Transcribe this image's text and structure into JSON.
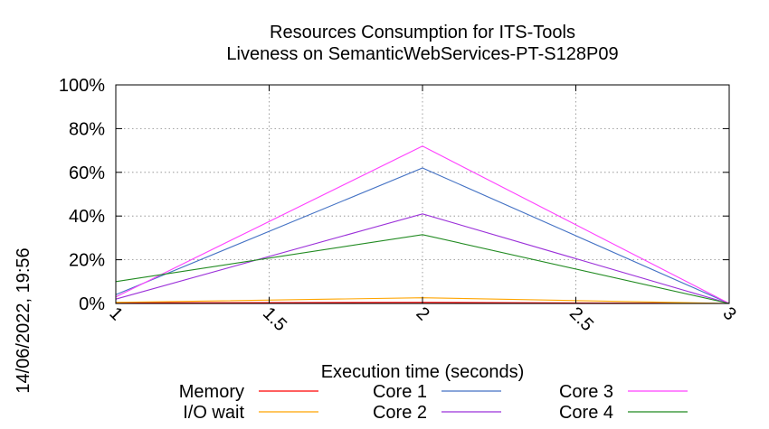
{
  "chart_data": {
    "type": "line",
    "title": [
      "Resources Consumption for ITS-Tools",
      "Liveness on SemanticWebServices-PT-S128P09"
    ],
    "xlabel": "Execution time (seconds)",
    "ylabel": "",
    "side_label": "14/06/2022, 19:56",
    "xlim": [
      1,
      3
    ],
    "ylim": [
      0,
      100
    ],
    "x_ticks": [
      1,
      1.5,
      2,
      2.5,
      3
    ],
    "x_tick_labels": [
      "1",
      "1.5",
      "2",
      "2.5",
      "3"
    ],
    "y_ticks": [
      0,
      20,
      40,
      60,
      80,
      100
    ],
    "y_tick_labels": [
      "0%",
      "20%",
      "40%",
      "60%",
      "80%",
      "100%"
    ],
    "grid": true,
    "legend_position": "bottom",
    "x": [
      1,
      2,
      3
    ],
    "series": [
      {
        "name": "Memory",
        "color": "#ff0000",
        "values": [
          0.3,
          0.5,
          0
        ]
      },
      {
        "name": "I/O wait",
        "color": "#ffa500",
        "values": [
          0.5,
          2.6,
          0
        ]
      },
      {
        "name": "Core 1",
        "color": "#4472c4",
        "values": [
          4,
          62,
          0
        ]
      },
      {
        "name": "Core 2",
        "color": "#9b30d9",
        "values": [
          2,
          41,
          0
        ]
      },
      {
        "name": "Core 3",
        "color": "#ff40ff",
        "values": [
          3,
          72,
          0
        ]
      },
      {
        "name": "Core 4",
        "color": "#228b22",
        "values": [
          10,
          31.5,
          0
        ]
      }
    ]
  }
}
